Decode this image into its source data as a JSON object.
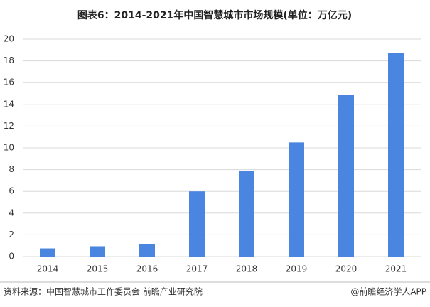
{
  "chart_data": {
    "type": "bar",
    "title": "图表6：2014-2021年中国智慧城市市场规模(单位：万亿元)",
    "categories": [
      "2014",
      "2015",
      "2016",
      "2017",
      "2018",
      "2019",
      "2020",
      "2021"
    ],
    "values": [
      0.75,
      0.95,
      1.15,
      6.0,
      7.9,
      10.5,
      14.9,
      18.7
    ],
    "color": "#4a86e0",
    "ylim": [
      0,
      20
    ],
    "yticks": [
      0,
      2,
      4,
      6,
      8,
      10,
      12,
      14,
      16,
      18,
      20
    ],
    "grid": true
  },
  "footer": {
    "source": "资料来源：中国智慧城市工作委员会 前瞻产业研究院",
    "credit": "@前瞻经济学人APP"
  }
}
